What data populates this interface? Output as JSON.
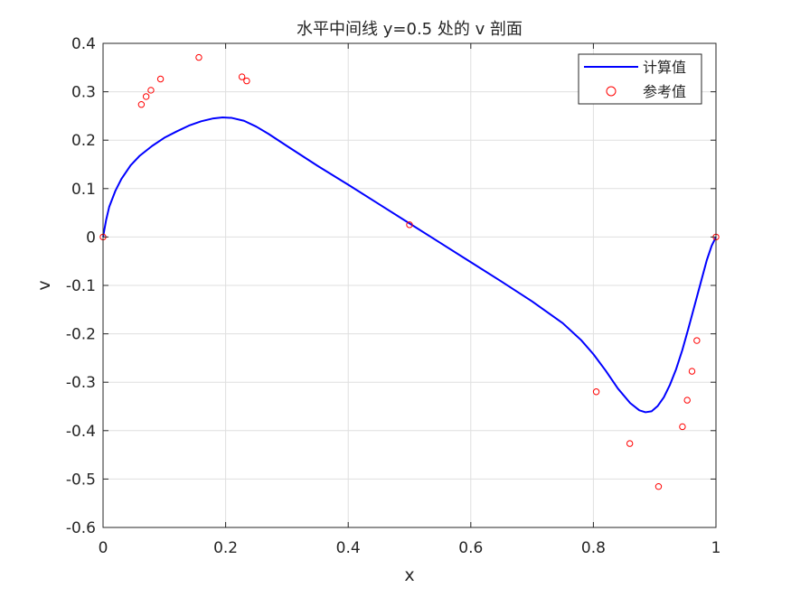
{
  "chart_data": {
    "type": "line",
    "title": "水平中间线 y=0.5 处的 v 剖面",
    "xlabel": "x",
    "ylabel": "v",
    "xlim": [
      0,
      1
    ],
    "ylim": [
      -0.6,
      0.4
    ],
    "xticks": [
      0,
      0.2,
      0.4,
      0.6,
      0.8,
      1
    ],
    "xtick_labels": [
      "0",
      "0.2",
      "0.4",
      "0.6",
      "0.8",
      "1"
    ],
    "yticks": [
      -0.6,
      -0.5,
      -0.4,
      -0.3,
      -0.2,
      -0.1,
      0,
      0.1,
      0.2,
      0.3,
      0.4
    ],
    "ytick_labels": [
      "-0.6",
      "-0.5",
      "-0.4",
      "-0.3",
      "-0.2",
      "-0.1",
      "0",
      "0.1",
      "0.2",
      "0.3",
      "0.4"
    ],
    "grid": true,
    "legend_position": "top-right",
    "series": [
      {
        "name": "计算值",
        "style": "line",
        "color": "#0000ff",
        "x": [
          0,
          0.005,
          0.01,
          0.02,
          0.03,
          0.045,
          0.06,
          0.08,
          0.1,
          0.12,
          0.14,
          0.16,
          0.18,
          0.195,
          0.21,
          0.23,
          0.25,
          0.27,
          0.3,
          0.35,
          0.4,
          0.45,
          0.5,
          0.55,
          0.6,
          0.65,
          0.7,
          0.75,
          0.78,
          0.8,
          0.82,
          0.84,
          0.86,
          0.875,
          0.885,
          0.895,
          0.905,
          0.915,
          0.925,
          0.935,
          0.945,
          0.955,
          0.965,
          0.975,
          0.985,
          0.993,
          1.0
        ],
        "y": [
          0,
          0.035,
          0.062,
          0.095,
          0.12,
          0.148,
          0.168,
          0.188,
          0.205,
          0.218,
          0.23,
          0.239,
          0.245,
          0.247,
          0.246,
          0.24,
          0.228,
          0.213,
          0.188,
          0.147,
          0.108,
          0.068,
          0.028,
          -0.012,
          -0.052,
          -0.092,
          -0.133,
          -0.178,
          -0.213,
          -0.242,
          -0.276,
          -0.313,
          -0.343,
          -0.358,
          -0.362,
          -0.36,
          -0.349,
          -0.331,
          -0.305,
          -0.273,
          -0.234,
          -0.189,
          -0.142,
          -0.095,
          -0.048,
          -0.018,
          0
        ]
      },
      {
        "name": "参考值",
        "style": "marker",
        "color": "#ff0000",
        "x": [
          0,
          0.0625,
          0.0703,
          0.0781,
          0.0938,
          0.1563,
          0.2266,
          0.2344,
          0.5,
          0.8047,
          0.8594,
          0.9063,
          0.9453,
          0.9531,
          0.9609,
          0.9688,
          1.0
        ],
        "y": [
          0,
          0.2737,
          0.2901,
          0.3031,
          0.3263,
          0.3709,
          0.3308,
          0.3224,
          0.0253,
          -0.3197,
          -0.4267,
          -0.5155,
          -0.3919,
          -0.3371,
          -0.2774,
          -0.2139,
          0
        ]
      }
    ]
  }
}
